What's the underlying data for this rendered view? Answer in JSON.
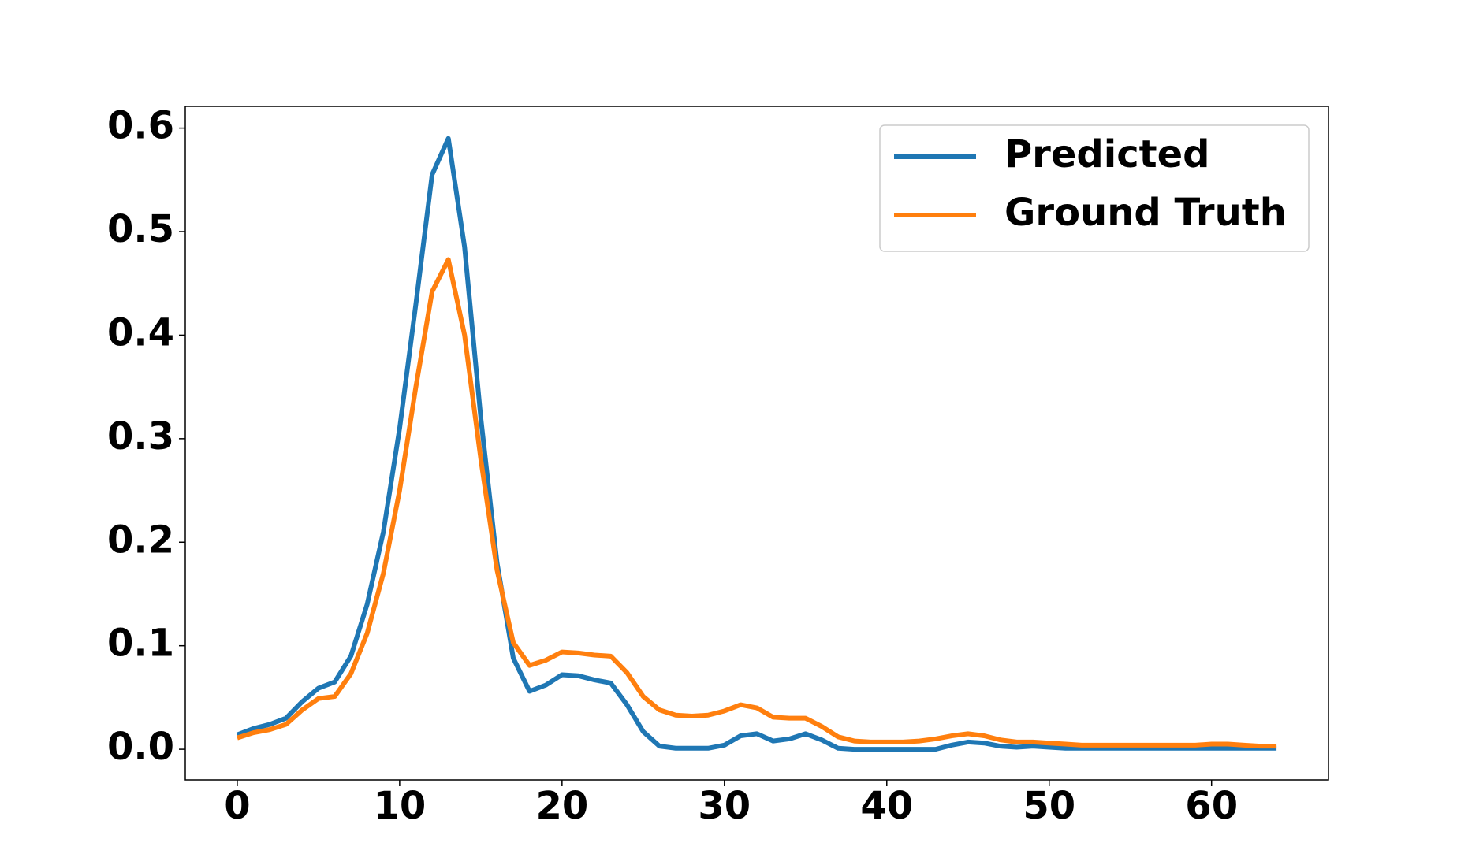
{
  "chart_data": {
    "type": "line",
    "x": [
      0,
      1,
      2,
      3,
      4,
      5,
      6,
      7,
      8,
      9,
      10,
      11,
      12,
      13,
      14,
      15,
      16,
      17,
      18,
      19,
      20,
      21,
      22,
      23,
      24,
      25,
      26,
      27,
      28,
      29,
      30,
      31,
      32,
      33,
      34,
      35,
      36,
      37,
      38,
      39,
      40,
      41,
      42,
      43,
      44,
      45,
      46,
      47,
      48,
      49,
      50,
      51,
      52,
      53,
      54,
      55,
      56,
      57,
      58,
      59,
      60,
      61,
      62,
      63,
      64
    ],
    "series": [
      {
        "name": "Predicted",
        "color": "#1f77b4",
        "values": [
          0.014,
          0.02,
          0.024,
          0.03,
          0.046,
          0.059,
          0.065,
          0.09,
          0.14,
          0.21,
          0.31,
          0.43,
          0.555,
          0.59,
          0.485,
          0.32,
          0.18,
          0.088,
          0.056,
          0.062,
          0.072,
          0.071,
          0.067,
          0.064,
          0.043,
          0.017,
          0.003,
          0.001,
          0.001,
          0.001,
          0.004,
          0.013,
          0.015,
          0.008,
          0.01,
          0.015,
          0.009,
          0.001,
          0.0,
          0.0,
          0.0,
          0.0,
          0.0,
          0.0,
          0.004,
          0.007,
          0.006,
          0.003,
          0.002,
          0.003,
          0.002,
          0.001,
          0.001,
          0.001,
          0.001,
          0.001,
          0.001,
          0.001,
          0.001,
          0.001,
          0.001,
          0.001,
          0.001,
          0.001,
          0.001
        ]
      },
      {
        "name": "Ground Truth",
        "color": "#ff7f0e",
        "values": [
          0.011,
          0.016,
          0.019,
          0.024,
          0.038,
          0.049,
          0.051,
          0.073,
          0.112,
          0.17,
          0.25,
          0.35,
          0.442,
          0.473,
          0.4,
          0.28,
          0.173,
          0.103,
          0.081,
          0.086,
          0.094,
          0.093,
          0.091,
          0.09,
          0.074,
          0.051,
          0.038,
          0.033,
          0.032,
          0.033,
          0.037,
          0.043,
          0.04,
          0.031,
          0.03,
          0.03,
          0.022,
          0.012,
          0.008,
          0.007,
          0.007,
          0.007,
          0.008,
          0.01,
          0.013,
          0.015,
          0.013,
          0.009,
          0.007,
          0.007,
          0.006,
          0.005,
          0.004,
          0.004,
          0.004,
          0.004,
          0.004,
          0.004,
          0.004,
          0.004,
          0.005,
          0.005,
          0.004,
          0.003,
          0.003
        ]
      }
    ],
    "xlim": [
      -3.2,
      67.2
    ],
    "xticks": [
      0,
      10,
      20,
      30,
      40,
      50,
      60
    ],
    "ylim": [
      -0.0296,
      0.621
    ],
    "yticks": [
      {
        "value": 0,
        "label": "0.0"
      },
      0.1,
      0.2,
      0.3,
      0.4,
      0.5,
      0.6
    ],
    "legend": "upper right",
    "grid": false
  }
}
